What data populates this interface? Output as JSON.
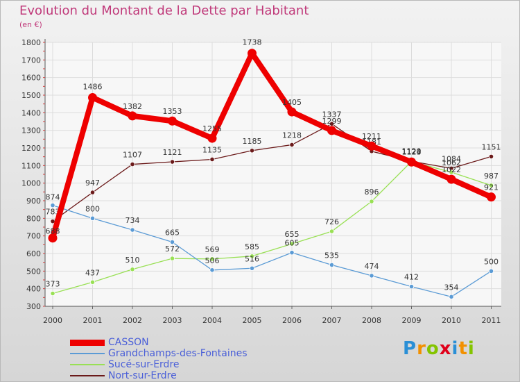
{
  "chart_data": {
    "type": "line",
    "title": "Evolution du Montant de la Dette par Habitant",
    "unit_label": "(en €)",
    "categories": [
      "2000",
      "2001",
      "2002",
      "2003",
      "2004",
      "2005",
      "2006",
      "2007",
      "2008",
      "2009",
      "2010",
      "2011"
    ],
    "ylim": [
      300,
      1800
    ],
    "yticks": [
      300,
      400,
      500,
      600,
      700,
      800,
      900,
      1000,
      1100,
      1200,
      1300,
      1400,
      1500,
      1600,
      1700,
      1800
    ],
    "grid": true,
    "series": [
      {
        "name": "Nort-sur-Erdre",
        "color": "#6b1a1a",
        "values": [
          783,
          947,
          1107,
          1121,
          1135,
          1185,
          1218,
          1337,
          1181,
          1124,
          1084,
          1151
        ],
        "labels": [
          "783",
          "947",
          "1107",
          "1121",
          "1135",
          "1185",
          "1218",
          "1337",
          "1181",
          "1124",
          "1084",
          "1151"
        ]
      },
      {
        "name": "Sucé-sur-Erdre",
        "color": "#99e055",
        "values": [
          373,
          437,
          510,
          572,
          569,
          585,
          655,
          726,
          896,
          1123,
          1062,
          987
        ],
        "labels": [
          "373",
          "437",
          "510",
          "572",
          "569",
          "585",
          "655",
          "726",
          "896",
          "1123",
          "1062",
          "987"
        ]
      },
      {
        "name": "Grandchamps-des-Fontaines",
        "color": "#5b9bd5",
        "values": [
          874,
          800,
          734,
          665,
          506,
          516,
          605,
          535,
          474,
          412,
          354,
          500
        ],
        "labels": [
          "874",
          "800",
          "734",
          "665",
          "506",
          "516",
          "605",
          "535",
          "474",
          "412",
          "354",
          "500"
        ]
      },
      {
        "name": "CASSON",
        "color": "#ee0000",
        "values": [
          688,
          1486,
          1382,
          1353,
          1255,
          1738,
          1405,
          1299,
          1211,
          1120,
          1022,
          921
        ],
        "labels": [
          "688",
          "1486",
          "1382",
          "1353",
          "1255",
          "1738",
          "1405",
          "1299",
          "1211",
          "1120",
          "1022",
          "921"
        ]
      }
    ]
  },
  "legend": [
    {
      "name": "CASSON",
      "color": "#ee0000"
    },
    {
      "name": "Grandchamps-des-Fontaines",
      "color": "#5b9bd5"
    },
    {
      "name": "Sucé-sur-Erdre",
      "color": "#99e055"
    },
    {
      "name": "Nort-sur-Erdre",
      "color": "#6b1a1a"
    }
  ],
  "logo": {
    "letters": [
      "P",
      "r",
      "o",
      "x",
      "i",
      "t",
      "i"
    ],
    "colors": [
      "#2a8fd6",
      "#f29000",
      "#84c400",
      "#e0001a",
      "#2a8fd6",
      "#f29000",
      "#84c400"
    ]
  }
}
